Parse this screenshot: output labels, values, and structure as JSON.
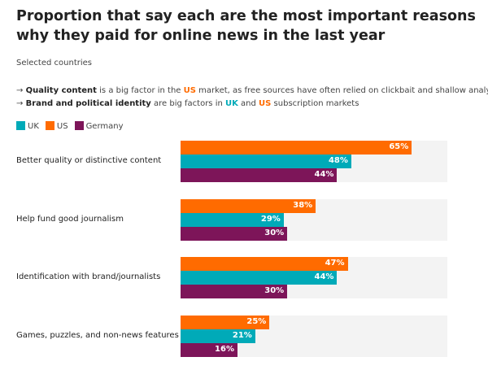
{
  "title": "Proportion that say each are the most important reasons why they paid for online news in the last year",
  "subtitle": "Selected countries",
  "notes": [
    {
      "arrow": "→",
      "bold": "Quality content",
      "t1": " is a big factor in the ",
      "hl1": "US",
      "t2": " market, as free sources have often relied on clickbait and shallow analysis"
    },
    {
      "arrow": "→",
      "bold": "Brand and political identity",
      "t1": " are big factors in ",
      "hl1": "UK",
      "t2": " and ",
      "hl2": "US",
      "t3": " subscription markets"
    }
  ],
  "chart_data": {
    "type": "bar",
    "orientation": "horizontal",
    "title": "Proportion that say each are the most important reasons why they paid for online news in the last year",
    "categories": [
      "Better quality or distinctive content",
      "Help fund good journalism",
      "Identification with brand/journalists",
      "Games, puzzles, and non-news features"
    ],
    "series": [
      {
        "name": "US",
        "color": "#ff6b00",
        "values": [
          65,
          38,
          47,
          25
        ]
      },
      {
        "name": "UK",
        "color": "#00aab8",
        "values": [
          48,
          29,
          44,
          21
        ]
      },
      {
        "name": "Germany",
        "color": "#7d1559",
        "values": [
          44,
          30,
          30,
          16
        ]
      }
    ],
    "legend": [
      "UK",
      "US",
      "Germany"
    ],
    "legend_colors": [
      "#00aab8",
      "#ff6b00",
      "#7d1559"
    ],
    "xlim": [
      0,
      75
    ],
    "value_suffix": "%"
  }
}
